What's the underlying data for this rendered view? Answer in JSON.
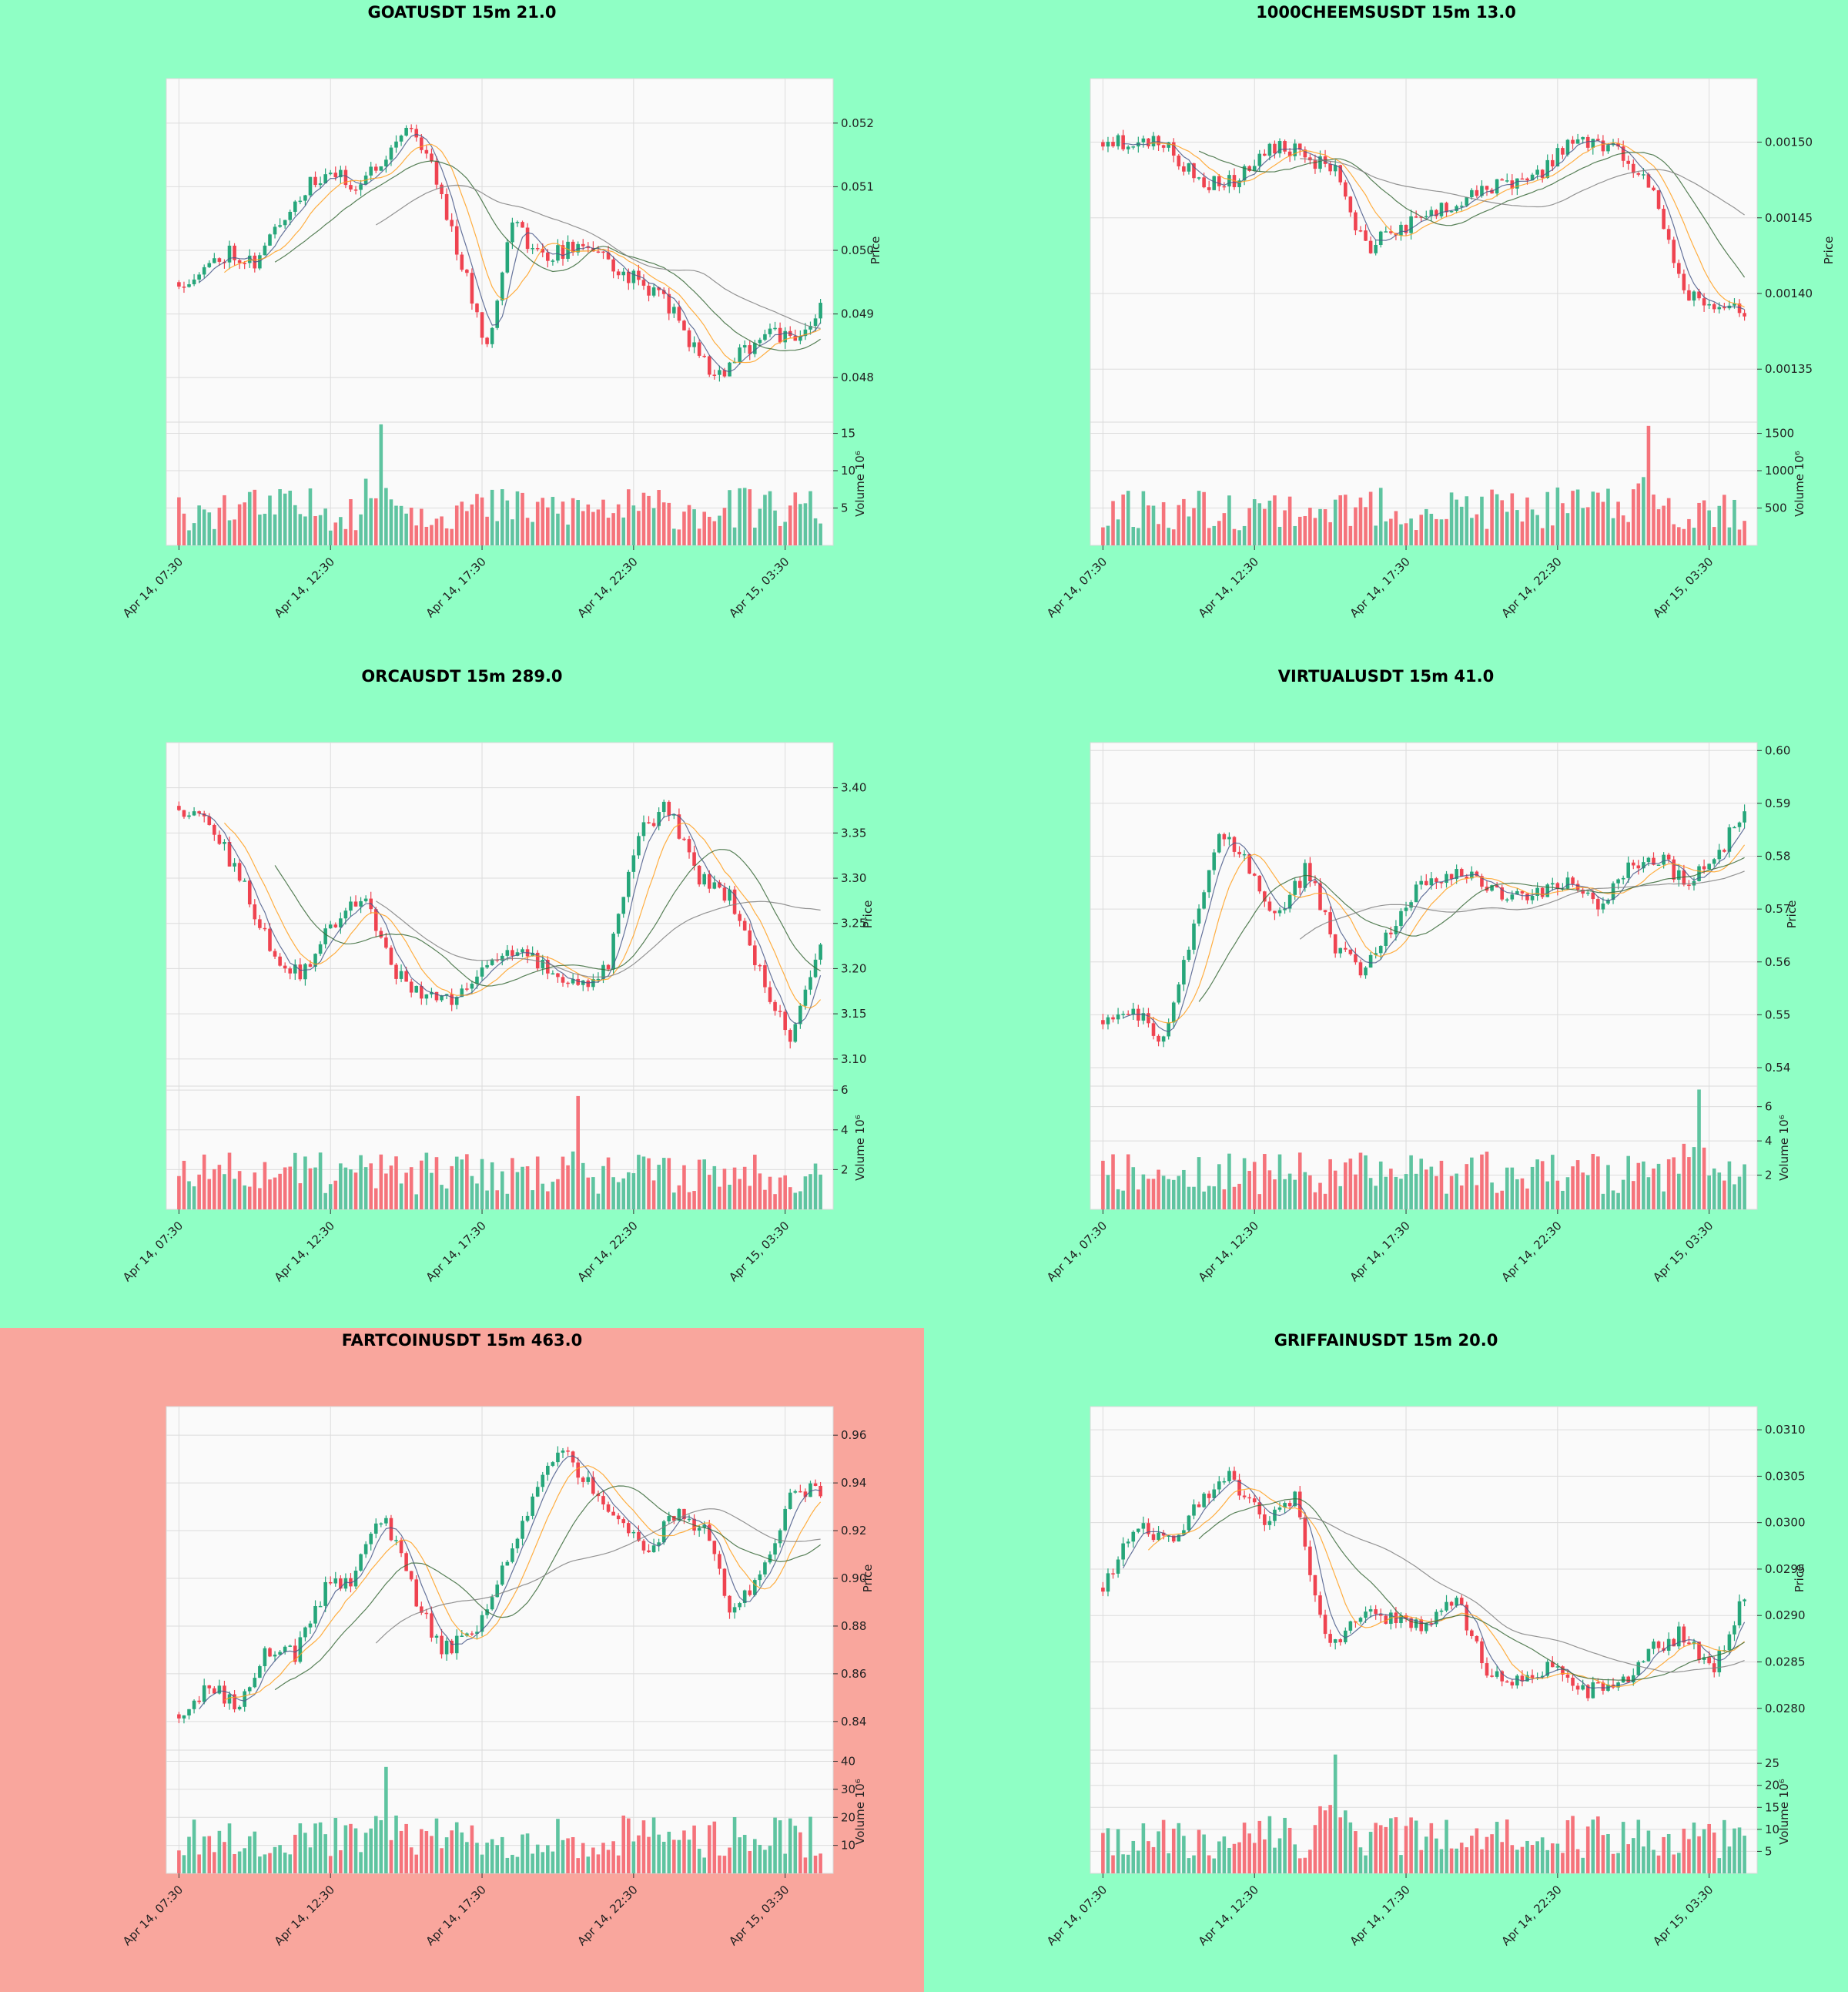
{
  "page": {
    "background": "#8fffc5",
    "alert_background": "#f9a69d"
  },
  "x_ticks": [
    "Apr 14, 07:30",
    "Apr 14, 12:30",
    "Apr 14, 17:30",
    "Apr 14, 22:30",
    "Apr 15, 03:30"
  ],
  "colors": {
    "up": "#26a67a",
    "down": "#ef4350",
    "vol_up": "#5ec4a0",
    "vol_down": "#f5737b",
    "ma_fast": "#4a5a8a",
    "ma_mid": "#ffa020",
    "ma_slow": "#3a6a3a",
    "ma_long": "#808080"
  },
  "chart_data": [
    {
      "type": "candlestick",
      "title": "GOATUSDT 15m 21.0",
      "highlight": false,
      "ylabel": "Price",
      "vlabel": "Volume  10⁶",
      "ylim": [
        0.0473,
        0.0527
      ],
      "yticks": [
        0.052,
        0.051,
        0.05,
        0.049,
        0.048
      ],
      "tick_decimals": 3,
      "vol_ylim": [
        0,
        16.5
      ],
      "vol_ticks": [
        5,
        10,
        15
      ],
      "anchors": [
        0.0495,
        0.0497,
        0.05,
        0.0498,
        0.0505,
        0.051,
        0.0512,
        0.051,
        0.0515,
        0.052,
        0.0512,
        0.0498,
        0.0485,
        0.0505,
        0.0499,
        0.05,
        0.0501,
        0.0497,
        0.0495,
        0.0492,
        0.0485,
        0.048,
        0.0484,
        0.0488,
        0.0485,
        0.0491
      ],
      "seed": 11,
      "vol_peak": 40,
      "vol_peak_value": 16.2
    },
    {
      "type": "candlestick",
      "title": "1000CHEEMSUSDT 15m 13.0",
      "highlight": false,
      "ylabel": "Price",
      "vlabel": "Volume  10⁶",
      "ylim": [
        0.001315,
        0.001542
      ],
      "yticks": [
        0.0015,
        0.00145,
        0.0014,
        0.00135
      ],
      "tick_decimals": 5,
      "vol_ylim": [
        0,
        1650
      ],
      "vol_ticks": [
        500,
        1000,
        1500
      ],
      "anchors": [
        0.0015,
        0.0015,
        0.0015,
        0.00148,
        0.00147,
        0.00148,
        0.0015,
        0.00149,
        0.00148,
        0.00143,
        0.00144,
        0.00145,
        0.00146,
        0.00147,
        0.00147,
        0.00148,
        0.0015,
        0.0015,
        0.00149,
        0.00146,
        0.0014,
        0.00139,
        0.00139
      ],
      "seed": 23,
      "vol_peak": 108,
      "vol_peak_value": 1600
    },
    {
      "type": "candlestick",
      "title": "ORCAUSDT 15m 289.0",
      "highlight": false,
      "ylabel": "Price",
      "vlabel": "Volume  10⁶",
      "ylim": [
        3.07,
        3.45
      ],
      "yticks": [
        3.4,
        3.35,
        3.3,
        3.25,
        3.2,
        3.15,
        3.1
      ],
      "tick_decimals": 2,
      "vol_ylim": [
        0,
        6.2
      ],
      "vol_ticks": [
        2,
        4,
        6
      ],
      "anchors": [
        3.38,
        3.36,
        3.3,
        3.22,
        3.19,
        3.25,
        3.28,
        3.2,
        3.17,
        3.16,
        3.21,
        3.22,
        3.2,
        3.18,
        3.2,
        3.35,
        3.38,
        3.3,
        3.28,
        3.2,
        3.12,
        3.22
      ],
      "seed": 37,
      "vol_peak": 79,
      "vol_peak_value": 5.7
    },
    {
      "type": "candlestick",
      "title": "VIRTUALUSDT 15m 41.0",
      "highlight": false,
      "ylabel": "Price",
      "vlabel": "Volume  10⁶",
      "ylim": [
        0.5365,
        0.6015
      ],
      "yticks": [
        0.6,
        0.59,
        0.58,
        0.57,
        0.56,
        0.55,
        0.54
      ],
      "tick_decimals": 2,
      "vol_ylim": [
        0,
        7.2
      ],
      "vol_ticks": [
        2,
        4,
        6
      ],
      "anchors": [
        0.549,
        0.551,
        0.545,
        0.565,
        0.585,
        0.578,
        0.568,
        0.578,
        0.562,
        0.558,
        0.568,
        0.575,
        0.577,
        0.575,
        0.572,
        0.573,
        0.575,
        0.571,
        0.578,
        0.58,
        0.575,
        0.58,
        0.588
      ],
      "seed": 51,
      "vol_peak": 118,
      "vol_peak_value": 7.0
    },
    {
      "type": "candlestick",
      "title": "FARTCOINUSDT 15m 463.0",
      "highlight": true,
      "ylabel": "Price",
      "vlabel": "Volume  10⁶",
      "ylim": [
        0.828,
        0.972
      ],
      "yticks": [
        0.96,
        0.94,
        0.92,
        0.9,
        0.88,
        0.86,
        0.84
      ],
      "tick_decimals": 2,
      "vol_ylim": [
        0,
        44
      ],
      "vol_ticks": [
        10,
        20,
        30,
        40
      ],
      "anchors": [
        0.843,
        0.855,
        0.848,
        0.87,
        0.868,
        0.895,
        0.9,
        0.928,
        0.895,
        0.87,
        0.875,
        0.9,
        0.93,
        0.955,
        0.94,
        0.925,
        0.91,
        0.928,
        0.92,
        0.885,
        0.905,
        0.935,
        0.938
      ],
      "seed": 67,
      "vol_peak": 41,
      "vol_peak_value": 38
    },
    {
      "type": "candlestick",
      "title": "GRIFFAINUSDT 15m 20.0",
      "highlight": false,
      "ylabel": "Price",
      "vlabel": "Volume  10⁶",
      "ylim": [
        0.02755,
        0.03125
      ],
      "yticks": [
        0.031,
        0.0305,
        0.03,
        0.0295,
        0.029,
        0.0285,
        0.028
      ],
      "tick_decimals": 4,
      "vol_ylim": [
        0,
        28
      ],
      "vol_ticks": [
        5,
        10,
        15,
        20,
        25
      ],
      "anchors": [
        0.0293,
        0.03,
        0.0298,
        0.0302,
        0.0305,
        0.03,
        0.0303,
        0.0286,
        0.029,
        0.029,
        0.0289,
        0.0292,
        0.0284,
        0.0283,
        0.0285,
        0.0282,
        0.0282,
        0.0286,
        0.0288,
        0.0284,
        0.0292
      ],
      "seed": 83,
      "vol_peak": 46,
      "vol_peak_value": 27
    }
  ]
}
